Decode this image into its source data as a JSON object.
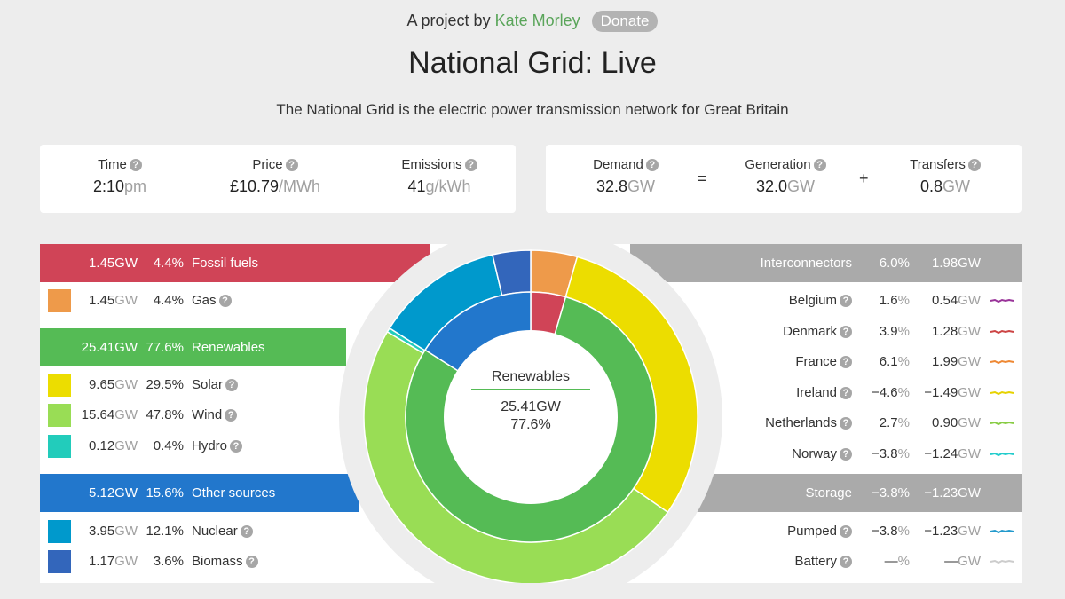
{
  "header": {
    "byline_prefix": "A project by",
    "author": "Kate Morley",
    "donate": "Donate",
    "title": "National Grid: Live",
    "subtitle": "The National Grid is the electric power transmission network for Great Britain"
  },
  "stats": {
    "time": {
      "label": "Time",
      "value": "2:10",
      "unit": "pm"
    },
    "price": {
      "label": "Price",
      "value": "£10.79",
      "unit": "/MWh"
    },
    "emissions": {
      "label": "Emissions",
      "value": "41",
      "unit": "g/kWh"
    },
    "demand": {
      "label": "Demand",
      "value": "32.8",
      "unit": "GW"
    },
    "generation": {
      "label": "Generation",
      "value": "32.0",
      "unit": "GW"
    },
    "transfers": {
      "label": "Transfers",
      "value": "0.8",
      "unit": "GW"
    },
    "equals": "=",
    "plus": "+"
  },
  "sources": {
    "fossil": {
      "gw": "1.45",
      "unit": "GW",
      "pct": "4.4%",
      "label": "Fossil fuels",
      "color": "#d04457"
    },
    "gas": {
      "gw": "1.45",
      "unit": "GW",
      "pct": "4.4%",
      "label": "Gas",
      "color": "#ee9a4a"
    },
    "renewables": {
      "gw": "25.41",
      "unit": "GW",
      "pct": "77.6%",
      "label": "Renewables",
      "color": "#55bb55"
    },
    "solar": {
      "gw": "9.65",
      "unit": "GW",
      "pct": "29.5%",
      "label": "Solar",
      "color": "#ecdd00"
    },
    "wind": {
      "gw": "15.64",
      "unit": "GW",
      "pct": "47.8%",
      "label": "Wind",
      "color": "#99dd55"
    },
    "hydro": {
      "gw": "0.12",
      "unit": "GW",
      "pct": "0.4%",
      "label": "Hydro",
      "color": "#22ccbb"
    },
    "other": {
      "gw": "5.12",
      "unit": "GW",
      "pct": "15.6%",
      "label": "Other sources",
      "color": "#2277cc"
    },
    "nuclear": {
      "gw": "3.95",
      "unit": "GW",
      "pct": "12.1%",
      "label": "Nuclear",
      "color": "#0099cc"
    },
    "biomass": {
      "gw": "1.17",
      "unit": "GW",
      "pct": "3.6%",
      "label": "Biomass",
      "color": "#3366bb"
    }
  },
  "interconnectors": {
    "header": {
      "label": "Interconnectors",
      "pct": "6.0%",
      "gw": "1.98",
      "unit": "GW"
    },
    "items": [
      {
        "label": "Belgium",
        "pct": "1.6",
        "pct_unit": "%",
        "gw": "0.54",
        "unit": "GW",
        "color": "#993399"
      },
      {
        "label": "Denmark",
        "pct": "3.9",
        "pct_unit": "%",
        "gw": "1.28",
        "unit": "GW",
        "color": "#cc4444"
      },
      {
        "label": "France",
        "pct": "6.1",
        "pct_unit": "%",
        "gw": "1.99",
        "unit": "GW",
        "color": "#ee8833"
      },
      {
        "label": "Ireland",
        "pct": "−4.6",
        "pct_unit": "%",
        "gw": "−1.49",
        "unit": "GW",
        "color": "#e6d200"
      },
      {
        "label": "Netherlands",
        "pct": "2.7",
        "pct_unit": "%",
        "gw": "0.90",
        "unit": "GW",
        "color": "#88cc44"
      },
      {
        "label": "Norway",
        "pct": "−3.8",
        "pct_unit": "%",
        "gw": "−1.24",
        "unit": "GW",
        "color": "#22cccc"
      }
    ]
  },
  "storage": {
    "header": {
      "label": "Storage",
      "pct": "−3.8%",
      "gw": "−1.23",
      "unit": "GW"
    },
    "items": [
      {
        "label": "Pumped",
        "pct": "−3.8",
        "pct_unit": "%",
        "gw": "−1.23",
        "unit": "GW",
        "color": "#2299cc"
      },
      {
        "label": "Battery",
        "pct": "—",
        "pct_unit": "%",
        "gw": "—",
        "unit": "GW",
        "color": "#cccccc"
      }
    ]
  },
  "donut": {
    "center_label": "Renewables",
    "center_gw": "25.41GW",
    "center_pct": "77.6%",
    "inner": [
      {
        "name": "Fossil fuels",
        "pct": 4.4,
        "color": "#d04457"
      },
      {
        "name": "Renewables",
        "pct": 77.6,
        "color": "#55bb55"
      },
      {
        "name": "Other sources",
        "pct": 15.6,
        "color": "#2277cc"
      }
    ],
    "outer": [
      {
        "name": "Gas",
        "pct": 4.4,
        "color": "#ee9a4a"
      },
      {
        "name": "Solar",
        "pct": 29.5,
        "color": "#ecdd00"
      },
      {
        "name": "Wind",
        "pct": 47.8,
        "color": "#99dd55"
      },
      {
        "name": "Hydro",
        "pct": 0.4,
        "color": "#22ccbb"
      },
      {
        "name": "Nuclear",
        "pct": 12.1,
        "color": "#0099cc"
      },
      {
        "name": "Biomass",
        "pct": 3.6,
        "color": "#3366bb"
      }
    ]
  }
}
